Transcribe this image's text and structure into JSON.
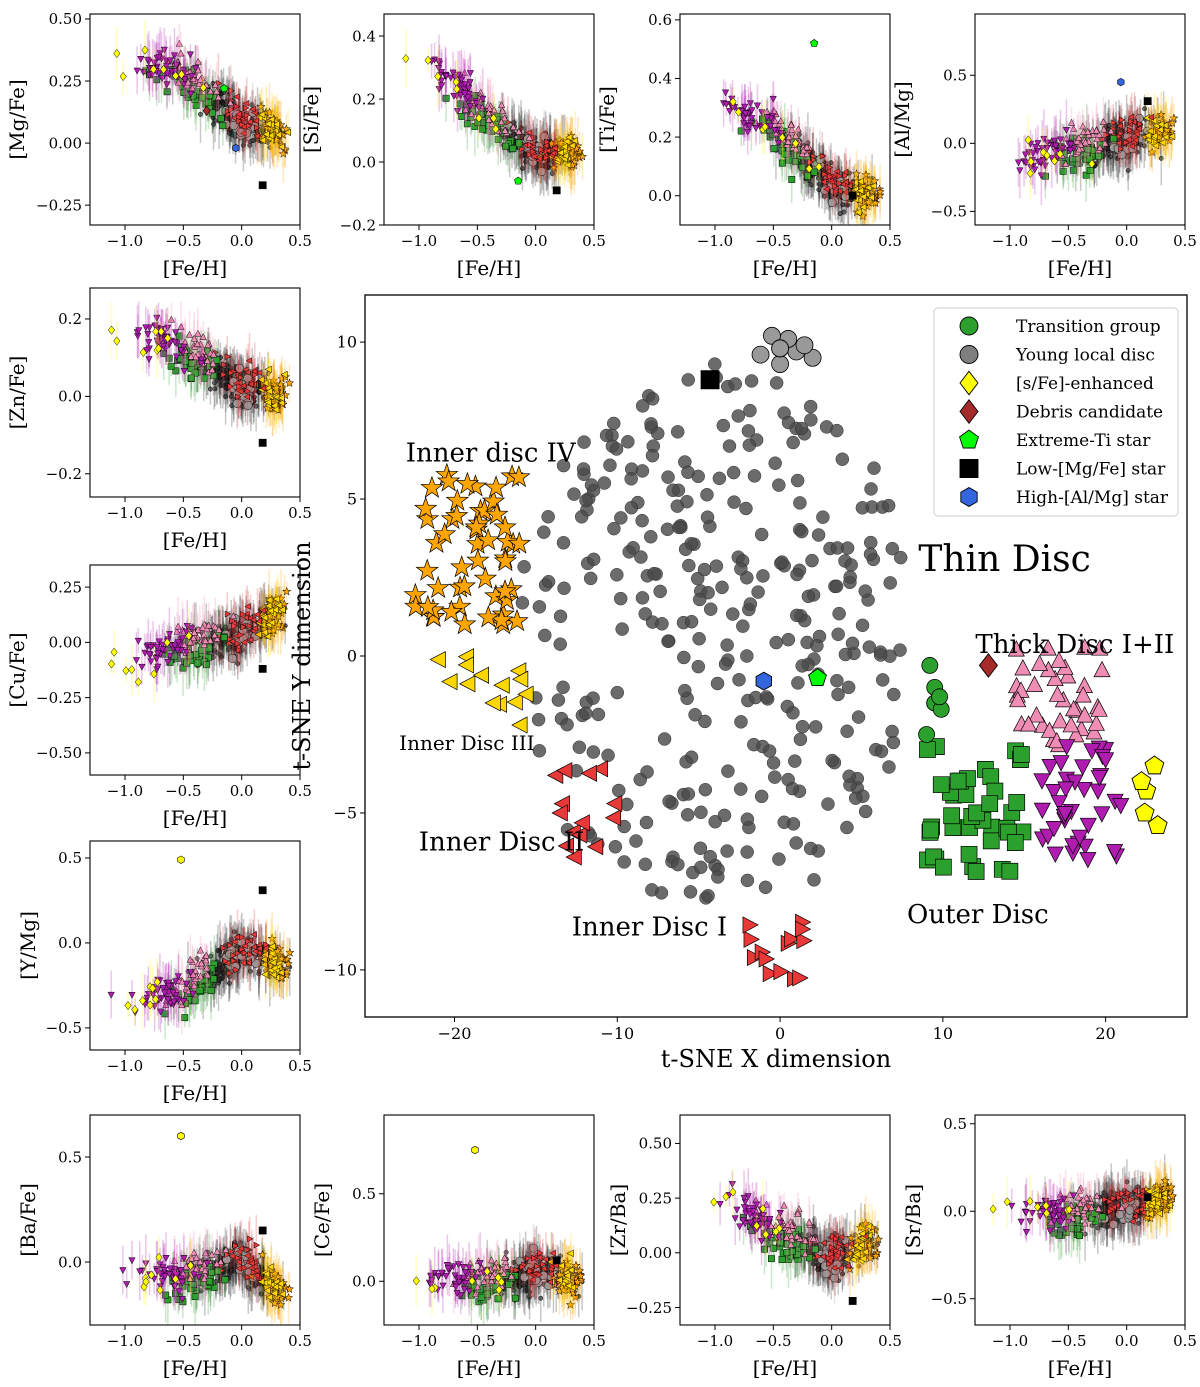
{
  "chart_data": [
    {
      "id": "mg",
      "type": "scatter",
      "ylabel": "[Mg/Fe]",
      "xlabel": "[Fe/H]",
      "xlim": [
        -1.3,
        0.5
      ],
      "ylim": [
        -0.33,
        0.52
      ],
      "xticks": [
        "-1.0",
        "-0.5",
        "0.0",
        "0.5"
      ],
      "yticks": [
        "-0.25",
        "0.00",
        "0.25",
        "0.50"
      ],
      "trend": {
        "feh": [
          -1.0,
          -0.5,
          0.0,
          0.35
        ],
        "y": [
          0.33,
          0.27,
          0.08,
          0.03
        ]
      },
      "groups_approx": {
        "young_local_disc": {
          "x": [
            -0.4,
            0.15
          ],
          "y": [
            -0.07,
            0.08
          ]
        },
        "transition_group": {
          "x": [
            -0.7,
            -0.3
          ],
          "y": [
            0.03,
            0.18
          ]
        },
        "inner_disc": {
          "x": [
            0.1,
            0.4
          ],
          "y": [
            -0.02,
            0.09
          ]
        }
      },
      "special": [
        {
          "label": "Low-[Mg/Fe] star",
          "x": 0.18,
          "y": -0.17
        },
        {
          "label": "High-[Al/Mg] star",
          "x": -0.05,
          "y": -0.02
        },
        {
          "label": "Extreme-Ti star",
          "x": -0.15,
          "y": 0.22
        },
        {
          "label": "Debris candidate",
          "x": -0.3,
          "y": 0.13
        }
      ]
    },
    {
      "id": "si",
      "type": "scatter",
      "ylabel": "[Si/Fe]",
      "xlabel": "[Fe/H]",
      "xlim": [
        -1.3,
        0.5
      ],
      "ylim": [
        -0.2,
        0.47
      ],
      "xticks": [
        "-1.0",
        "-0.5",
        "0.0",
        "0.5"
      ],
      "yticks": [
        "-0.2",
        "0.0",
        "0.2",
        "0.4"
      ],
      "trend": {
        "feh": [
          -1.0,
          -0.5,
          0.0,
          0.35
        ],
        "y": [
          0.33,
          0.16,
          0.02,
          0.03
        ]
      },
      "special": [
        {
          "label": "Low-[Mg/Fe] star",
          "x": 0.18,
          "y": -0.09
        },
        {
          "label": "Extreme-Ti star",
          "x": -0.15,
          "y": -0.06
        }
      ]
    },
    {
      "id": "ti",
      "type": "scatter",
      "ylabel": "[Ti/Fe]",
      "xlabel": "[Fe/H]",
      "xlim": [
        -1.3,
        0.5
      ],
      "ylim": [
        -0.1,
        0.62
      ],
      "xticks": [
        "-1.0",
        "-0.5",
        "0.0",
        "0.5"
      ],
      "yticks": [
        "0.0",
        "0.2",
        "0.4",
        "0.6"
      ],
      "trend": {
        "feh": [
          -1.0,
          -0.5,
          0.0,
          0.35
        ],
        "y": [
          0.3,
          0.23,
          0.03,
          0.0
        ]
      },
      "special": [
        {
          "label": "Extreme-Ti star",
          "x": -0.15,
          "y": 0.52
        },
        {
          "label": "Low-[Mg/Fe] star",
          "x": 0.18,
          "y": 0.0
        }
      ]
    },
    {
      "id": "al",
      "type": "scatter",
      "ylabel": "[Al/Mg]",
      "xlabel": "[Fe/H]",
      "xlim": [
        -1.3,
        0.5
      ],
      "ylim": [
        -0.6,
        0.95
      ],
      "xticks": [
        "-1.0",
        "-0.5",
        "0.0",
        "0.5"
      ],
      "yticks": [
        "-0.5",
        "0.0",
        "0.5"
      ],
      "trend": {
        "feh": [
          -1.0,
          -0.5,
          0.0,
          0.35
        ],
        "y": [
          -0.2,
          -0.05,
          0.02,
          0.08
        ]
      },
      "special": [
        {
          "label": "High-[Al/Mg] star",
          "x": -0.05,
          "y": 0.45
        },
        {
          "label": "Low-[Mg/Fe] star",
          "x": 0.18,
          "y": 0.31
        }
      ]
    },
    {
      "id": "zn",
      "type": "scatter",
      "ylabel": "[Zn/Fe]",
      "xlabel": "[Fe/H]",
      "xlim": [
        -1.3,
        0.5
      ],
      "ylim": [
        -0.26,
        0.28
      ],
      "xticks": [
        "-1.0",
        "-0.5",
        "0.0",
        "0.5"
      ],
      "yticks": [
        "-0.2",
        "0.0",
        "0.2"
      ],
      "trend": {
        "feh": [
          -1.0,
          -0.5,
          0.0,
          0.35
        ],
        "y": [
          0.16,
          0.12,
          0.02,
          0.01
        ]
      },
      "special": [
        {
          "label": "Low-[Mg/Fe] star",
          "x": 0.18,
          "y": -0.12
        }
      ]
    },
    {
      "id": "cu",
      "type": "scatter",
      "ylabel": "[Cu/Fe]",
      "xlabel": "[Fe/H]",
      "xlim": [
        -1.3,
        0.5
      ],
      "ylim": [
        -0.6,
        0.35
      ],
      "xticks": [
        "-1.0",
        "-0.5",
        "0.0",
        "0.5"
      ],
      "yticks": [
        "-0.50",
        "-0.25",
        "0.00",
        "0.25"
      ],
      "trend": {
        "feh": [
          -1.0,
          -0.5,
          0.0,
          0.35
        ],
        "y": [
          -0.12,
          -0.03,
          0.03,
          0.15
        ]
      },
      "special": [
        {
          "label": "Low-[Mg/Fe] star",
          "x": 0.18,
          "y": -0.12
        }
      ]
    },
    {
      "id": "ymg",
      "type": "scatter",
      "ylabel": "[Y/Mg]",
      "xlabel": "[Fe/H]",
      "xlim": [
        -1.3,
        0.5
      ],
      "ylim": [
        -0.63,
        0.6
      ],
      "xticks": [
        "-1.0",
        "-0.5",
        "0.0",
        "0.5"
      ],
      "yticks": [
        "-0.5",
        "0.0",
        "0.5"
      ],
      "trend": {
        "feh": [
          -1.0,
          -0.5,
          0.0,
          0.35
        ],
        "y": [
          -0.38,
          -0.3,
          -0.05,
          -0.12
        ]
      },
      "special": [
        {
          "label": "Low-[Mg/Fe] star",
          "x": 0.18,
          "y": 0.31
        },
        {
          "label": "[s/Fe]-enhanced",
          "x": -0.52,
          "y": 0.49
        }
      ]
    },
    {
      "id": "ba",
      "type": "scatter",
      "ylabel": "[Ba/Fe]",
      "xlabel": "[Fe/H]",
      "xlim": [
        -1.3,
        0.5
      ],
      "ylim": [
        -0.3,
        0.7
      ],
      "xticks": [
        "-1.0",
        "-0.5",
        "0.0",
        "0.5"
      ],
      "yticks": [
        "0.0",
        "0.5"
      ],
      "trend": {
        "feh": [
          -1.0,
          -0.5,
          0.0,
          0.35
        ],
        "y": [
          -0.1,
          -0.08,
          0.0,
          -0.14
        ]
      },
      "special": [
        {
          "label": "Low-[Mg/Fe] star",
          "x": 0.18,
          "y": 0.15
        },
        {
          "label": "[s/Fe]-enhanced",
          "x": -0.52,
          "y": 0.6
        }
      ]
    },
    {
      "id": "ce",
      "type": "scatter",
      "ylabel": "[Ce/Fe]",
      "xlabel": "[Fe/H]",
      "xlim": [
        -1.3,
        0.5
      ],
      "ylim": [
        -0.25,
        0.95
      ],
      "xticks": [
        "-1.0",
        "-0.5",
        "0.0",
        "0.5"
      ],
      "yticks": [
        "0.0",
        "0.5"
      ],
      "trend": {
        "feh": [
          -1.0,
          -0.5,
          0.0,
          0.35
        ],
        "y": [
          -0.03,
          -0.02,
          0.05,
          0.0
        ]
      },
      "special": [
        {
          "label": "[s/Fe]-enhanced",
          "x": -0.52,
          "y": 0.75
        },
        {
          "label": "Low-[Mg/Fe] star",
          "x": 0.18,
          "y": 0.12
        }
      ]
    },
    {
      "id": "zr",
      "type": "scatter",
      "ylabel": "[Zr/Ba]",
      "xlabel": "[Fe/H]",
      "xlim": [
        -1.3,
        0.5
      ],
      "ylim": [
        -0.33,
        0.63
      ],
      "xticks": [
        "-1.0",
        "-0.5",
        "0.0",
        "0.5"
      ],
      "yticks": [
        "-0.25",
        "0.00",
        "0.25",
        "0.50"
      ],
      "trend": {
        "feh": [
          -1.0,
          -0.5,
          0.0,
          0.35
        ],
        "y": [
          0.25,
          0.1,
          -0.03,
          0.05
        ]
      },
      "special": [
        {
          "label": "Low-[Mg/Fe] star",
          "x": 0.18,
          "y": -0.22
        }
      ]
    },
    {
      "id": "sr",
      "type": "scatter",
      "ylabel": "[Sr/Ba]",
      "xlabel": "[Fe/H]",
      "xlim": [
        -1.3,
        0.5
      ],
      "ylim": [
        -0.65,
        0.55
      ],
      "xticks": [
        "-1.0",
        "-0.5",
        "0.0",
        "0.5"
      ],
      "yticks": [
        "-0.5",
        "0.0",
        "0.5"
      ],
      "trend": {
        "feh": [
          -1.0,
          -0.5,
          0.0,
          0.35
        ],
        "y": [
          -0.05,
          -0.03,
          0.02,
          0.08
        ]
      },
      "special": [
        {
          "label": "Low-[Mg/Fe] star",
          "x": 0.18,
          "y": 0.08
        }
      ]
    },
    {
      "id": "tsne",
      "type": "scatter",
      "xlabel": "t-SNE X dimension",
      "ylabel": "t-SNE Y dimension",
      "xlim": [
        -25.5,
        25
      ],
      "ylim": [
        -11.5,
        11.5
      ],
      "xticks": [
        "−20",
        "−10",
        "0",
        "10",
        "20"
      ],
      "yticks": [
        "−10",
        "−5",
        "0",
        "5",
        "10"
      ],
      "legend": {
        "placement": "top-right",
        "entries": [
          {
            "label": "Transition group",
            "marker": "circle",
            "color": "#2ca02c"
          },
          {
            "label": "Young local disc",
            "marker": "circle",
            "color": "#7f7f7f"
          },
          {
            "label": "[s/Fe]-enhanced",
            "marker": "diamond",
            "color": "#ffff00"
          },
          {
            "label": "Debris candidate",
            "marker": "diamond",
            "color": "#a52a2a"
          },
          {
            "label": "Extreme-Ti star",
            "marker": "pentagon",
            "color": "#00ff00"
          },
          {
            "label": "Low-[Mg/Fe] star",
            "marker": "square",
            "color": "#000000"
          },
          {
            "label": "High-[Al/Mg] star",
            "marker": "hexagon",
            "color": "#3366dd"
          }
        ]
      },
      "annotations": [
        {
          "text": "Thin Disc",
          "x": 8.5,
          "y": 2.7,
          "size": "large"
        },
        {
          "text": "Thick Disc I+II",
          "x": 12,
          "y": 0.1,
          "size": "medium"
        },
        {
          "text": "Inner disc IV",
          "x": -23,
          "y": 6.2,
          "size": "medium"
        },
        {
          "text": "Inner Disc III",
          "x": -23.4,
          "y": -3.0,
          "size": "small"
        },
        {
          "text": "Inner Disc II",
          "x": -22.2,
          "y": -6.2,
          "size": "medium"
        },
        {
          "text": "Inner Disc I",
          "x": -12.8,
          "y": -8.9,
          "size": "medium"
        },
        {
          "text": "Outer Disc",
          "x": 7.8,
          "y": -8.5,
          "size": "medium"
        }
      ],
      "clusters_approx": [
        {
          "name": "Thin Disc",
          "marker": "circle",
          "color": "#555555",
          "center": [
            0,
            0
          ],
          "x_range": [
            -16,
            8
          ],
          "y_range": [
            -8,
            10
          ]
        },
        {
          "name": "Inner disc IV",
          "marker": "star",
          "color": "#ffa500",
          "center": [
            -19.5,
            3.2
          ],
          "x_range": [
            -22.5,
            -16
          ],
          "y_range": [
            1,
            6
          ]
        },
        {
          "name": "Inner Disc III",
          "marker": "triangle-left",
          "color": "#ffd700",
          "center": [
            -18.5,
            -0.8
          ],
          "x_range": [
            -21,
            -15.5
          ],
          "y_range": [
            -2.2,
            0.2
          ]
        },
        {
          "name": "Inner Disc II",
          "marker": "triangle-left",
          "color": "#e83838",
          "center": [
            -12,
            -4.7
          ],
          "x_range": [
            -14,
            -10
          ],
          "y_range": [
            -6.5,
            -3.5
          ]
        },
        {
          "name": "Inner Disc I",
          "marker": "triangle-right",
          "color": "#e83838",
          "center": [
            -0.5,
            -9.5
          ],
          "x_range": [
            -2,
            2
          ],
          "y_range": [
            -10.5,
            -8.3
          ]
        },
        {
          "name": "Outer Disc",
          "marker": "square",
          "color": "#2ca02c",
          "center": [
            11.5,
            -5.2
          ],
          "x_range": [
            9,
            15
          ],
          "y_range": [
            -7,
            -2.7
          ]
        },
        {
          "name": "Thick Disc I",
          "marker": "triangle-up",
          "color": "#f08db5",
          "center": [
            17,
            -1.3
          ],
          "x_range": [
            14.5,
            20
          ],
          "y_range": [
            -3,
            0.3
          ]
        },
        {
          "name": "Thick Disc II",
          "marker": "triangle-down",
          "color": "#b01cb0",
          "center": [
            18.5,
            -4.8
          ],
          "x_range": [
            16,
            21
          ],
          "y_range": [
            -6.5,
            -2.8
          ]
        }
      ],
      "special_points": [
        {
          "label": "Young local disc (large)",
          "x": 0,
          "y": 9.8
        },
        {
          "label": "Low-[Mg/Fe] star",
          "x": -4.3,
          "y": 8.8
        },
        {
          "label": "High-[Al/Mg] star",
          "x": -1.0,
          "y": -0.8
        },
        {
          "label": "Extreme-Ti star",
          "x": 2.3,
          "y": -0.7
        },
        {
          "label": "Debris candidate",
          "x": 12.8,
          "y": -0.3
        },
        {
          "label": "Transition group",
          "x": 9.5,
          "y": -1.5
        },
        {
          "label": "[s/Fe]-enhanced",
          "x": 22.5,
          "y": -4.3
        }
      ]
    }
  ]
}
